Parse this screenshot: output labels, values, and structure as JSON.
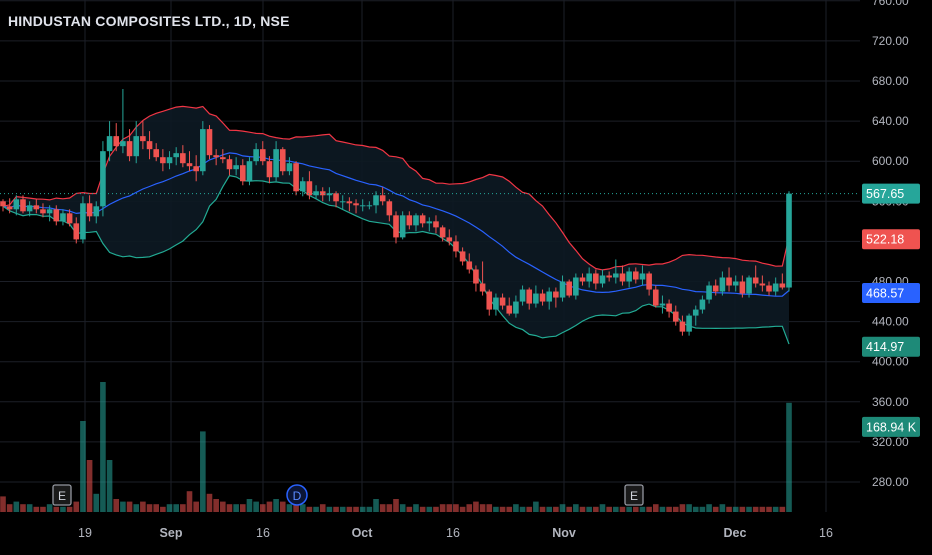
{
  "title": "HINDUSTAN COMPOSITES LTD., 1D, NSE",
  "colors": {
    "background": "#000000",
    "grid": "#1c1f27",
    "up": "#26a69a",
    "down": "#ef5350",
    "upper_band": "#f23645",
    "lower_band": "#22ab94",
    "basis": "#2962ff",
    "axis_text": "#b2b5be"
  },
  "chart_data": {
    "type": "candlestick",
    "symbol": "HINDUSTAN COMPOSITES LTD.",
    "interval": "1D",
    "exchange": "NSE",
    "ylim": [
      260,
      760
    ],
    "y_ticks": [
      "760.00",
      "720.00",
      "680.00",
      "640.00",
      "600.00",
      "560.00",
      "520.00",
      "480.00",
      "440.00",
      "400.00",
      "360.00",
      "320.00",
      "280.00"
    ],
    "x_ticks": [
      "19",
      "Sep",
      "16",
      "Oct",
      "16",
      "Nov",
      "Dec",
      "16"
    ],
    "price_labels": [
      {
        "value": "567.65",
        "kind": "last"
      },
      {
        "value": "522.18",
        "kind": "upper"
      },
      {
        "value": "468.57",
        "kind": "basis"
      },
      {
        "value": "414.97",
        "kind": "lower"
      },
      {
        "value": "168.94 K",
        "kind": "volume"
      }
    ],
    "event_markers": [
      {
        "label": "E",
        "type": "earnings"
      },
      {
        "label": "D",
        "type": "dividend"
      },
      {
        "label": "E",
        "type": "earnings"
      }
    ],
    "ohlc": [
      [
        560,
        562,
        550,
        555
      ],
      [
        555,
        563,
        548,
        552
      ],
      [
        552,
        566,
        546,
        562
      ],
      [
        562,
        566,
        548,
        550
      ],
      [
        550,
        560,
        545,
        556
      ],
      [
        556,
        562,
        548,
        552
      ],
      [
        552,
        558,
        544,
        548
      ],
      [
        548,
        556,
        540,
        552
      ],
      [
        552,
        556,
        536,
        540
      ],
      [
        540,
        552,
        536,
        548
      ],
      [
        548,
        552,
        535,
        538
      ],
      [
        538,
        544,
        518,
        522
      ],
      [
        522,
        565,
        518,
        558
      ],
      [
        558,
        566,
        540,
        545
      ],
      [
        545,
        560,
        538,
        555
      ],
      [
        555,
        620,
        545,
        610
      ],
      [
        610,
        640,
        600,
        625
      ],
      [
        625,
        638,
        610,
        615
      ],
      [
        615,
        672,
        608,
        620
      ],
      [
        620,
        632,
        600,
        605
      ],
      [
        605,
        640,
        598,
        625
      ],
      [
        625,
        640,
        612,
        620
      ],
      [
        620,
        630,
        602,
        612
      ],
      [
        612,
        618,
        600,
        604
      ],
      [
        604,
        612,
        590,
        598
      ],
      [
        598,
        610,
        592,
        604
      ],
      [
        604,
        614,
        596,
        608
      ],
      [
        608,
        616,
        594,
        598
      ],
      [
        598,
        610,
        590,
        595
      ],
      [
        595,
        606,
        580,
        590
      ],
      [
        590,
        640,
        586,
        632
      ],
      [
        632,
        636,
        602,
        606
      ],
      [
        606,
        612,
        596,
        604
      ],
      [
        604,
        612,
        598,
        602
      ],
      [
        602,
        606,
        586,
        592
      ],
      [
        592,
        604,
        586,
        596
      ],
      [
        596,
        602,
        576,
        580
      ],
      [
        580,
        604,
        576,
        600
      ],
      [
        600,
        618,
        596,
        612
      ],
      [
        612,
        620,
        596,
        600
      ],
      [
        600,
        605,
        578,
        584
      ],
      [
        584,
        620,
        580,
        612
      ],
      [
        612,
        614,
        586,
        590
      ],
      [
        590,
        604,
        586,
        598
      ],
      [
        598,
        600,
        566,
        570
      ],
      [
        570,
        584,
        565,
        580
      ],
      [
        580,
        590,
        562,
        566
      ],
      [
        566,
        576,
        562,
        570
      ],
      [
        570,
        574,
        560,
        566
      ],
      [
        566,
        574,
        560,
        568
      ],
      [
        568,
        570,
        554,
        560
      ],
      [
        560,
        566,
        552,
        560
      ],
      [
        560,
        564,
        550,
        558
      ],
      [
        558,
        562,
        548,
        556
      ],
      [
        556,
        562,
        550,
        556
      ],
      [
        556,
        560,
        552,
        556
      ],
      [
        556,
        570,
        548,
        566
      ],
      [
        566,
        574,
        556,
        560
      ],
      [
        560,
        562,
        540,
        546
      ],
      [
        546,
        550,
        518,
        524
      ],
      [
        524,
        550,
        522,
        546
      ],
      [
        546,
        550,
        532,
        536
      ],
      [
        536,
        548,
        530,
        546
      ],
      [
        546,
        548,
        534,
        538
      ],
      [
        538,
        544,
        530,
        540
      ],
      [
        540,
        546,
        528,
        534
      ],
      [
        534,
        536,
        520,
        524
      ],
      [
        524,
        532,
        516,
        520
      ],
      [
        520,
        526,
        504,
        510
      ],
      [
        510,
        514,
        496,
        500
      ],
      [
        500,
        508,
        488,
        492
      ],
      [
        492,
        496,
        470,
        478
      ],
      [
        478,
        500,
        466,
        470
      ],
      [
        470,
        472,
        446,
        452
      ],
      [
        452,
        468,
        446,
        464
      ],
      [
        464,
        468,
        452,
        456
      ],
      [
        456,
        464,
        446,
        448
      ],
      [
        448,
        466,
        444,
        460
      ],
      [
        460,
        476,
        456,
        472
      ],
      [
        472,
        474,
        452,
        458
      ],
      [
        458,
        476,
        454,
        468
      ],
      [
        468,
        472,
        456,
        460
      ],
      [
        460,
        474,
        452,
        470
      ],
      [
        470,
        474,
        454,
        464
      ],
      [
        464,
        486,
        460,
        480
      ],
      [
        480,
        482,
        464,
        466
      ],
      [
        466,
        488,
        462,
        484
      ],
      [
        484,
        488,
        476,
        480
      ],
      [
        480,
        494,
        474,
        488
      ],
      [
        488,
        492,
        472,
        478
      ],
      [
        478,
        492,
        474,
        486
      ],
      [
        486,
        490,
        480,
        484
      ],
      [
        484,
        502,
        478,
        488
      ],
      [
        488,
        496,
        476,
        480
      ],
      [
        480,
        494,
        474,
        490
      ],
      [
        490,
        494,
        478,
        482
      ],
      [
        482,
        496,
        476,
        488
      ],
      [
        488,
        490,
        466,
        472
      ],
      [
        472,
        476,
        454,
        456
      ],
      [
        456,
        466,
        448,
        458
      ],
      [
        458,
        462,
        444,
        450
      ],
      [
        450,
        456,
        436,
        440
      ],
      [
        440,
        446,
        426,
        430
      ],
      [
        430,
        448,
        426,
        446
      ],
      [
        446,
        456,
        436,
        452
      ],
      [
        452,
        466,
        448,
        462
      ],
      [
        462,
        480,
        458,
        476
      ],
      [
        476,
        482,
        466,
        470
      ],
      [
        470,
        490,
        466,
        484
      ],
      [
        484,
        494,
        470,
        476
      ],
      [
        476,
        486,
        470,
        480
      ],
      [
        480,
        486,
        464,
        468
      ],
      [
        468,
        486,
        464,
        484
      ],
      [
        484,
        496,
        474,
        478
      ],
      [
        478,
        486,
        470,
        476
      ],
      [
        476,
        480,
        466,
        470
      ],
      [
        470,
        484,
        466,
        478
      ],
      [
        478,
        488,
        472,
        474
      ],
      [
        474,
        570,
        470,
        567.65
      ]
    ],
    "volume": [
      0.06,
      0.03,
      0.04,
      0.03,
      0.03,
      0.02,
      0.02,
      0.03,
      0.02,
      0.02,
      0.02,
      0.04,
      0.35,
      0.2,
      0.07,
      0.5,
      0.2,
      0.05,
      0.04,
      0.04,
      0.03,
      0.04,
      0.03,
      0.03,
      0.02,
      0.03,
      0.03,
      0.03,
      0.08,
      0.04,
      0.31,
      0.07,
      0.05,
      0.04,
      0.03,
      0.03,
      0.03,
      0.05,
      0.04,
      0.03,
      0.04,
      0.05,
      0.04,
      0.03,
      0.03,
      0.03,
      0.02,
      0.02,
      0.03,
      0.02,
      0.02,
      0.02,
      0.02,
      0.02,
      0.02,
      0.02,
      0.05,
      0.03,
      0.03,
      0.05,
      0.03,
      0.02,
      0.03,
      0.02,
      0.02,
      0.02,
      0.03,
      0.03,
      0.03,
      0.02,
      0.03,
      0.04,
      0.03,
      0.03,
      0.02,
      0.02,
      0.02,
      0.03,
      0.02,
      0.02,
      0.04,
      0.02,
      0.02,
      0.02,
      0.03,
      0.02,
      0.03,
      0.02,
      0.02,
      0.02,
      0.03,
      0.02,
      0.02,
      0.02,
      0.02,
      0.02,
      0.02,
      0.02,
      0.03,
      0.02,
      0.02,
      0.02,
      0.03,
      0.03,
      0.02,
      0.02,
      0.03,
      0.02,
      0.03,
      0.02,
      0.02,
      0.02,
      0.02,
      0.02,
      0.02,
      0.02,
      0.02,
      0.02,
      0.42
    ],
    "volume_colors_follow_candles": true,
    "bollinger": {
      "upper_last": 522.18,
      "basis_last": 468.57,
      "lower_last": 414.97
    }
  }
}
